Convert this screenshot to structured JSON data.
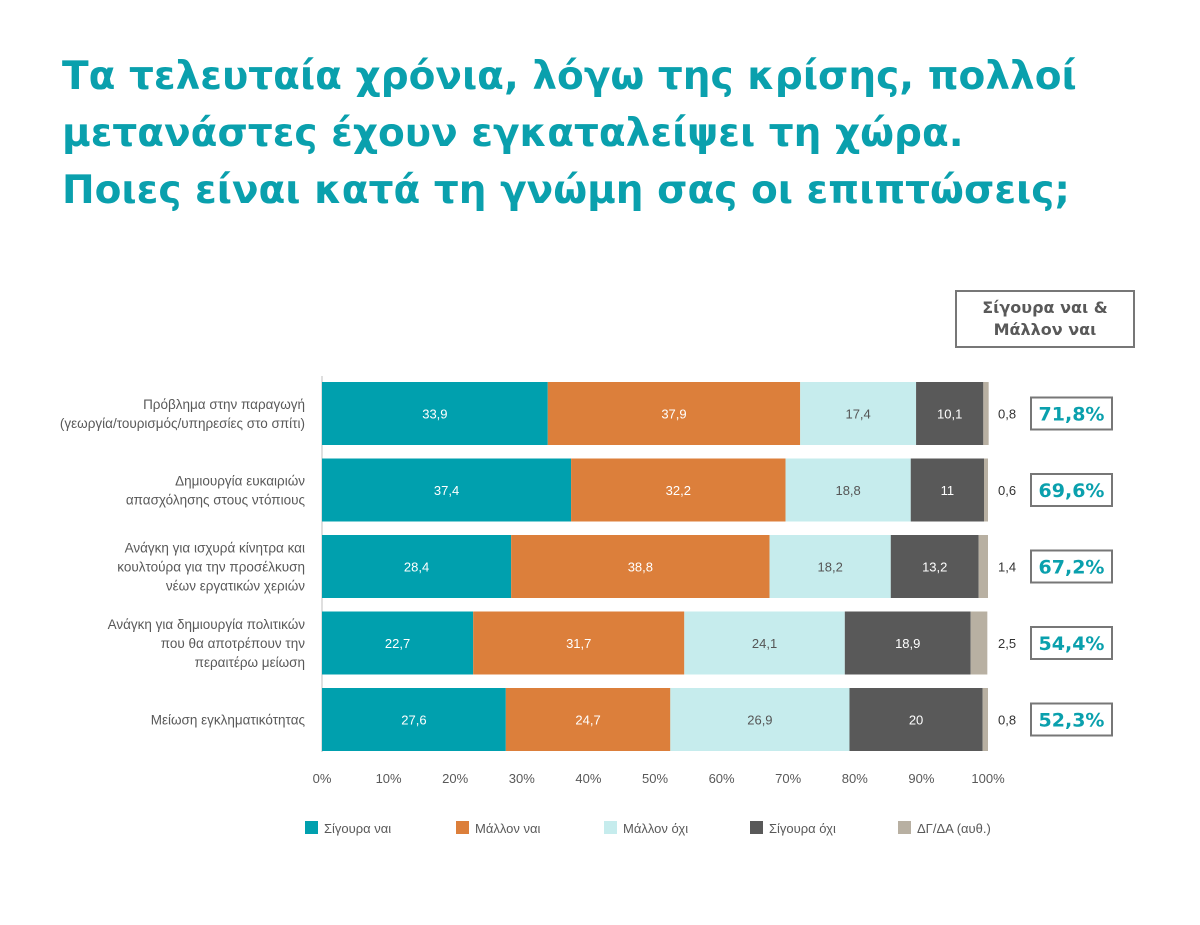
{
  "title": "Τα τελευταία χρόνια, λόγω της κρίσης, πολλοί μετανάστες έχουν εγκαταλείψει τη χώρα. Ποιες είναι κατά τη γνώμη σας οι επιπτώσεις;",
  "summary_header": {
    "line1": "Σίγουρα ναι &",
    "line2": "Μάλλον ναι"
  },
  "colors": {
    "title": "#0aa0ad",
    "series": [
      "#00a0ae",
      "#dc7f3b",
      "#c6eced",
      "#595959",
      "#b8b0a2"
    ],
    "summary_border": "#777777",
    "summary_text": "#0aa0ad",
    "text": "#595959"
  },
  "chart_data": {
    "type": "bar",
    "orientation": "horizontal",
    "stacked": true,
    "categories": [
      [
        "Πρόβλημα στην παραγωγή",
        "(γεωργία/τουρισμός/υπηρεσίες στο σπίτι)"
      ],
      [
        "Δημιουργία ευκαιριών",
        "απασχόλησης στους ντόπιους"
      ],
      [
        "Ανάγκη για ισχυρά κίνητρα και",
        "κουλτούρα για την προσέλκυση",
        "νέων εργατικών χεριών"
      ],
      [
        "Ανάγκη για δημιουργία πολιτικών",
        "που θα αποτρέπουν την",
        "περαιτέρω μείωση"
      ],
      [
        "Μείωση εγκληματικότητας"
      ]
    ],
    "series": [
      {
        "name": "Σίγουρα ναι",
        "values": [
          33.9,
          37.4,
          28.4,
          22.7,
          27.6
        ]
      },
      {
        "name": "Μάλλον ναι",
        "values": [
          37.9,
          32.2,
          38.8,
          31.7,
          24.7
        ]
      },
      {
        "name": "Μάλλον όχι",
        "values": [
          17.4,
          18.8,
          18.2,
          24.1,
          26.9
        ]
      },
      {
        "name": "Σίγουρα όχι",
        "values": [
          10.1,
          11,
          13.2,
          18.9,
          20
        ]
      },
      {
        "name": "ΔΓ/ΔΑ (αυθ.)",
        "values": [
          0.8,
          0.6,
          1.4,
          2.5,
          0.8
        ]
      }
    ],
    "value_labels": [
      [
        "33,9",
        "37,4",
        "28,4",
        "22,7",
        "27,6"
      ],
      [
        "37,9",
        "32,2",
        "38,8",
        "31,7",
        "24,7"
      ],
      [
        "17,4",
        "18,8",
        "18,2",
        "24,1",
        "26,9"
      ],
      [
        "10,1",
        "11",
        "13,2",
        "18,9",
        "20"
      ],
      [
        "0,8",
        "0,6",
        "1,4",
        "2,5",
        "0,8"
      ]
    ],
    "summary": [
      "71,8%",
      "69,6%",
      "67,2%",
      "54,4%",
      "52,3%"
    ],
    "xlim": [
      0,
      100
    ],
    "xticks": [
      "0%",
      "10%",
      "20%",
      "30%",
      "40%",
      "50%",
      "60%",
      "70%",
      "80%",
      "90%",
      "100%"
    ],
    "legend_position": "bottom",
    "grid": false
  }
}
